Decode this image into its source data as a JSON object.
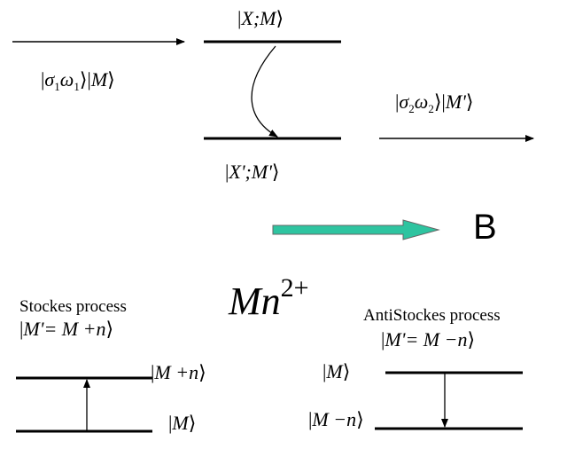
{
  "top": {
    "initial_state": {
      "pre": "σ",
      "sub1": "1",
      "mid": "ω",
      "sub2": "1",
      "post": "M"
    },
    "intermediate_state": "X;M",
    "final_intermediate_state": "X';M'",
    "scattered_state": {
      "pre": "σ",
      "sub1": "2",
      "mid": "ω",
      "sub2": "2",
      "post": "M'"
    }
  },
  "field": {
    "label": "B",
    "arrow_color": "#2ec4a0"
  },
  "ion": {
    "base": "Mn",
    "charge": "2+"
  },
  "stockes": {
    "title": "Stockes process",
    "relation": "M'= M +n",
    "upper_level": "M +n",
    "lower_level": "M"
  },
  "antistockes": {
    "title": "AntiStockes process",
    "relation": "M'= M −n",
    "upper_level": "M",
    "lower_level": "M −n"
  }
}
